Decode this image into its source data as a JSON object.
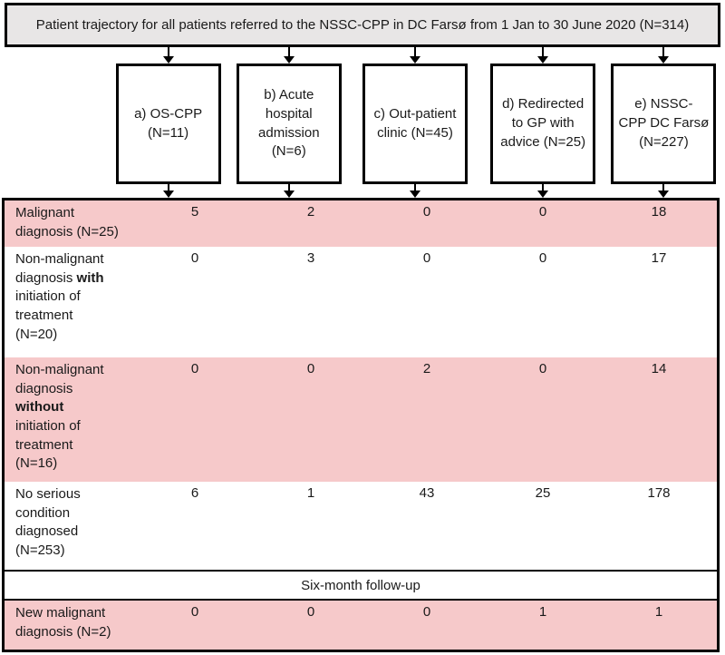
{
  "header": {
    "title": "Patient trajectory for all patients referred to the NSSC-CPP in DC Farsø from 1 Jan to 30 June 2020 (N=314)"
  },
  "boxes": [
    {
      "id": "a",
      "label": "a) OS-CPP\n(N=11)"
    },
    {
      "id": "b",
      "label": "b) Acute\nhospital\nadmission\n(N=6)"
    },
    {
      "id": "c",
      "label": "c) Out-patient\nclinic (N=45)"
    },
    {
      "id": "d",
      "label": "d) Redirected\nto GP with\nadvice (N=25)"
    },
    {
      "id": "e",
      "label": "e) NSSC-\nCPP DC Farsø\n(N=227)"
    }
  ],
  "table": {
    "rows": [
      {
        "label": "Malignant\ndiagnosis (N=25)",
        "values": [
          "5",
          "2",
          "0",
          "0",
          "18"
        ],
        "highlight": true
      },
      {
        "label": "Non-malignant\ndiagnosis **with**\ninitiation of\ntreatment\n(N=20)",
        "values": [
          "0",
          "3",
          "0",
          "0",
          "17"
        ],
        "highlight": false
      },
      {
        "label": "Non-malignant\ndiagnosis\n**without**\ninitiation of\ntreatment\n(N=16)",
        "values": [
          "0",
          "0",
          "2",
          "0",
          "14"
        ],
        "highlight": true
      },
      {
        "label": "No serious\ncondition\ndiagnosed\n(N=253)",
        "values": [
          "6",
          "1",
          "43",
          "25",
          "178"
        ],
        "highlight": false
      }
    ],
    "divider_label": "Six-month follow-up",
    "followup_rows": [
      {
        "label": "New malignant\ndiagnosis (N=2)",
        "values": [
          "0",
          "0",
          "0",
          "1",
          "1"
        ],
        "highlight": true
      }
    ]
  },
  "colors": {
    "highlight_row": "#f6c9ca",
    "header_fill": "#e8e6e6",
    "border": "#000000"
  }
}
